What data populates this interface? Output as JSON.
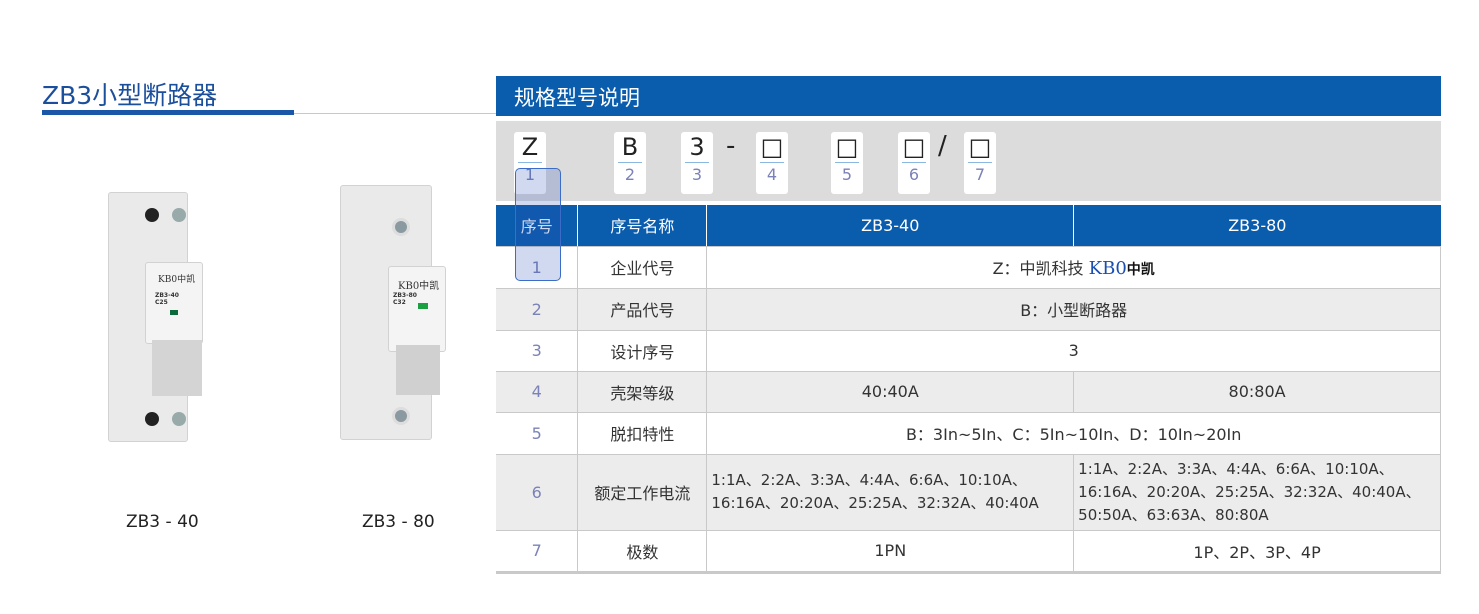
{
  "title": "ZB3小型断路器",
  "products": [
    {
      "label": "ZB3 - 40",
      "brand": "KB0中凯",
      "model": "ZB3-40",
      "rating": "C25"
    },
    {
      "label": "ZB3 - 80",
      "brand": "KB0中凯",
      "model": "ZB3-80",
      "rating": "C32"
    }
  ],
  "spec_header": "规格型号说明",
  "code": [
    {
      "ch": "Z",
      "num": "1"
    },
    {
      "ch": "B",
      "num": "2"
    },
    {
      "ch": "3",
      "num": "3"
    },
    {
      "ch": "□",
      "num": "4"
    },
    {
      "ch": "□",
      "num": "5"
    },
    {
      "ch": "□",
      "num": "6"
    },
    {
      "ch": "□",
      "num": "7"
    }
  ],
  "code_sep": {
    "dash": "-",
    "slash": "/"
  },
  "table": {
    "headers": [
      "序号",
      "序号名称",
      "ZB3-40",
      "ZB3-80"
    ],
    "rows": [
      {
        "no": "1",
        "name": "企业代号",
        "value": "Z：中凯科技",
        "logo_a": "KB0",
        "logo_b": "中凯"
      },
      {
        "no": "2",
        "name": "产品代号",
        "value": "B：小型断路器"
      },
      {
        "no": "3",
        "name": "设计序号",
        "value": "3"
      },
      {
        "no": "4",
        "name": "壳架等级",
        "a": "40:40A",
        "b": "80:80A"
      },
      {
        "no": "5",
        "name": "脱扣特性",
        "value": "B：3In~5In、C：5In~10In、D：10In~20In"
      },
      {
        "no": "6",
        "name": "额定工作电流",
        "a": "1:1A、2:2A、3:3A、4:4A、6:6A、10:10A、16:16A、20:20A、25:25A、32:32A、40:40A",
        "b": "1:1A、2:2A、3:3A、4:4A、6:6A、10:10A、16:16A、20:20A、25:25A、32:32A、40:40A、50:50A、63:63A、80:80A"
      },
      {
        "no": "7",
        "name": "极数",
        "a": "1PN",
        "b": "1P、2P、3P、4P"
      }
    ]
  }
}
